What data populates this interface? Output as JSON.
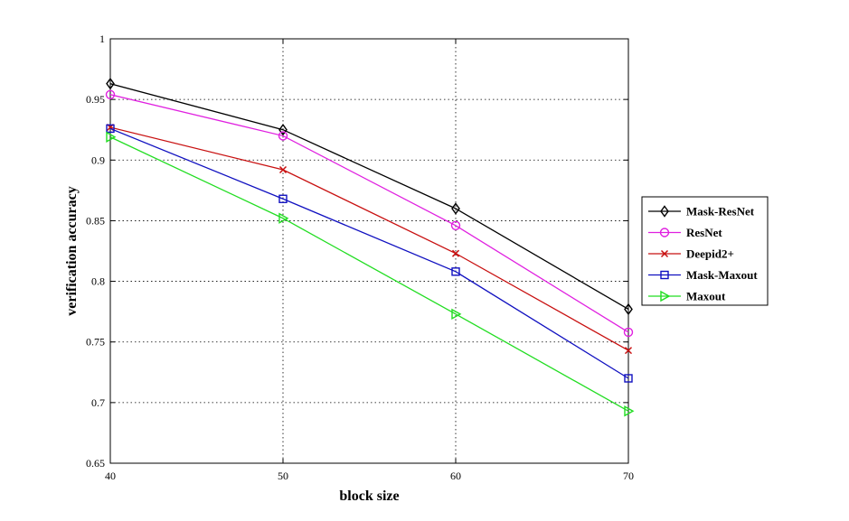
{
  "chart_data": {
    "type": "line",
    "title": "",
    "xlabel": "block size",
    "ylabel": "verification accuracy",
    "x": [
      40,
      50,
      60,
      70
    ],
    "xticks": [
      40,
      50,
      60,
      70
    ],
    "yticks": [
      0.65,
      0.7,
      0.75,
      0.8,
      0.85,
      0.9,
      0.95,
      1
    ],
    "ytick_labels": [
      "0.65",
      "0.7",
      "0.75",
      "0.8",
      "0.85",
      "0.9",
      "0.95",
      "1"
    ],
    "xlim": [
      40,
      70
    ],
    "ylim": [
      0.65,
      1.0
    ],
    "grid": true,
    "legend_position": "right",
    "series": [
      {
        "name": "Mask-ResNet",
        "values": [
          0.963,
          0.925,
          0.86,
          0.777
        ],
        "color": "#000000",
        "marker": "diamond"
      },
      {
        "name": "ResNet",
        "values": [
          0.954,
          0.92,
          0.846,
          0.758
        ],
        "color": "#e020e0",
        "marker": "circle"
      },
      {
        "name": "Deepid2+",
        "values": [
          0.927,
          0.892,
          0.823,
          0.743
        ],
        "color": "#c81010",
        "marker": "x"
      },
      {
        "name": "Mask-Maxout",
        "values": [
          0.926,
          0.868,
          0.808,
          0.72
        ],
        "color": "#1010c0",
        "marker": "square"
      },
      {
        "name": "Maxout",
        "values": [
          0.919,
          0.852,
          0.773,
          0.693
        ],
        "color": "#22dd22",
        "marker": "triangle-right"
      }
    ]
  }
}
